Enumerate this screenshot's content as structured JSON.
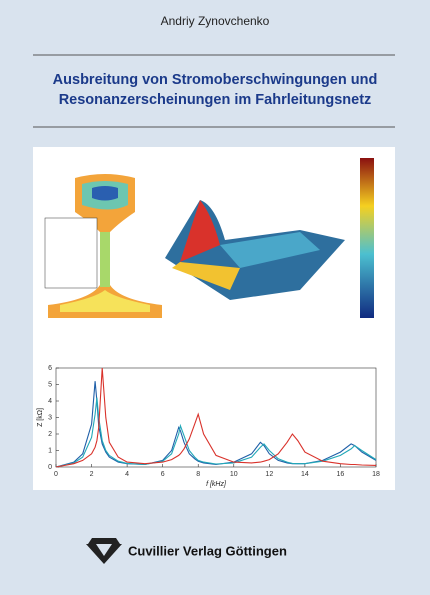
{
  "author": "Andriy Zynovchenko",
  "title": [
    "Ausbreitung von Stromoberschwingungen und",
    "Resonanzerscheinungen im Fahrleitungsnetz"
  ],
  "publisher": "Cuvillier Verlag Göttingen",
  "chart_data": {
    "type": "line",
    "xlabel": "f [kHz]",
    "ylabel": "Z [kΩ]",
    "xlim": [
      0,
      18
    ],
    "ylim": [
      0,
      6
    ],
    "xticks": [
      0,
      2,
      4,
      6,
      8,
      10,
      12,
      14,
      16,
      18
    ],
    "yticks": [
      0,
      1,
      2,
      3,
      4,
      5,
      6
    ],
    "x": [
      0,
      1,
      1.5,
      2,
      2.2,
      2.3,
      2.4,
      2.6,
      2.8,
      3,
      3.5,
      4,
      5,
      6,
      6.5,
      6.9,
      7,
      7.2,
      7.5,
      7.8,
      8,
      8.3,
      9,
      10,
      11,
      11.5,
      11.7,
      12,
      12.5,
      13,
      13.3,
      13.6,
      14,
      15,
      16,
      16.6,
      16.8,
      17.2,
      18
    ],
    "series": [
      {
        "color": "#1f5fa8",
        "values": [
          0,
          0.3,
          0.8,
          2.6,
          5.2,
          4.0,
          2.5,
          1.4,
          0.9,
          0.6,
          0.3,
          0.2,
          0.15,
          0.4,
          1.0,
          2.4,
          2.2,
          1.5,
          0.8,
          0.5,
          0.35,
          0.25,
          0.15,
          0.3,
          0.8,
          1.5,
          1.3,
          0.8,
          0.4,
          0.25,
          0.2,
          0.2,
          0.2,
          0.4,
          0.9,
          1.4,
          1.3,
          0.9,
          0.4
        ]
      },
      {
        "color": "#22a8b8",
        "values": [
          0,
          0.25,
          0.6,
          1.8,
          3.2,
          4.2,
          3.0,
          1.6,
          1.0,
          0.7,
          0.35,
          0.22,
          0.15,
          0.35,
          0.8,
          2.0,
          2.5,
          1.9,
          1.0,
          0.6,
          0.4,
          0.3,
          0.18,
          0.25,
          0.6,
          1.2,
          1.4,
          1.0,
          0.5,
          0.3,
          0.22,
          0.2,
          0.2,
          0.35,
          0.7,
          1.1,
          1.3,
          1.0,
          0.45
        ]
      },
      {
        "color": "#d9322b",
        "values": [
          0,
          0.2,
          0.4,
          0.8,
          1.2,
          1.6,
          2.4,
          6.0,
          3.0,
          1.5,
          0.6,
          0.3,
          0.2,
          0.3,
          0.45,
          0.7,
          0.8,
          1.1,
          1.7,
          2.6,
          3.2,
          2.0,
          0.7,
          0.3,
          0.25,
          0.3,
          0.35,
          0.45,
          0.8,
          1.5,
          2.0,
          1.6,
          0.9,
          0.35,
          0.2,
          0.15,
          0.15,
          0.12,
          0.1
        ]
      }
    ]
  }
}
